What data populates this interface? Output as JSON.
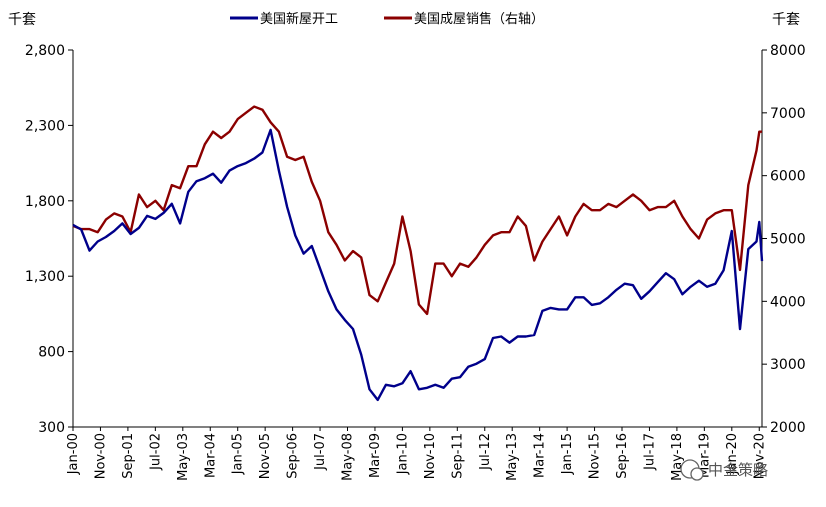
{
  "chart_data": {
    "type": "line",
    "title": "",
    "y_left_unit": "千套",
    "y_right_unit": "千套",
    "y_left_range": [
      300,
      2800
    ],
    "y_left_ticks": [
      "2,800",
      "2,300",
      "1,800",
      "1,300",
      "800",
      "300"
    ],
    "y_right_range": [
      2000,
      8000
    ],
    "y_right_ticks": [
      "8000",
      "7000",
      "6000",
      "5000",
      "4000",
      "3000",
      "2000"
    ],
    "x_tick_labels": [
      "Jan-00",
      "Nov-00",
      "Sep-01",
      "Jul-02",
      "May-03",
      "Mar-04",
      "Jan-05",
      "Nov-05",
      "Sep-06",
      "Jul-07",
      "May-08",
      "Mar-09",
      "Jan-10",
      "Nov-10",
      "Sep-11",
      "Jul-12",
      "May-13",
      "Mar-14",
      "Jan-15",
      "Nov-15",
      "Sep-16",
      "Jul-17",
      "May-18",
      "Mar-19",
      "Jan-20",
      "Nov-20"
    ],
    "x_range": [
      "2000-01",
      "2020-12"
    ],
    "grid": false,
    "legend_position": "top",
    "series": [
      {
        "name": "美国新屋开工",
        "axis": "left",
        "color": "#00008b",
        "points": [
          [
            "2000-01",
            1640
          ],
          [
            "2000-04",
            1610
          ],
          [
            "2000-07",
            1470
          ],
          [
            "2000-10",
            1530
          ],
          [
            "2001-01",
            1560
          ],
          [
            "2001-04",
            1600
          ],
          [
            "2001-07",
            1650
          ],
          [
            "2001-10",
            1580
          ],
          [
            "2002-01",
            1620
          ],
          [
            "2002-04",
            1700
          ],
          [
            "2002-07",
            1680
          ],
          [
            "2002-10",
            1720
          ],
          [
            "2003-01",
            1780
          ],
          [
            "2003-04",
            1650
          ],
          [
            "2003-07",
            1860
          ],
          [
            "2003-10",
            1930
          ],
          [
            "2004-01",
            1950
          ],
          [
            "2004-04",
            1980
          ],
          [
            "2004-07",
            1920
          ],
          [
            "2004-10",
            2000
          ],
          [
            "2005-01",
            2030
          ],
          [
            "2005-04",
            2050
          ],
          [
            "2005-07",
            2080
          ],
          [
            "2005-10",
            2120
          ],
          [
            "2006-01",
            2270
          ],
          [
            "2006-04",
            2000
          ],
          [
            "2006-07",
            1760
          ],
          [
            "2006-10",
            1570
          ],
          [
            "2007-01",
            1450
          ],
          [
            "2007-04",
            1500
          ],
          [
            "2007-07",
            1350
          ],
          [
            "2007-10",
            1200
          ],
          [
            "2008-01",
            1080
          ],
          [
            "2008-04",
            1010
          ],
          [
            "2008-07",
            950
          ],
          [
            "2008-10",
            780
          ],
          [
            "2009-01",
            550
          ],
          [
            "2009-04",
            480
          ],
          [
            "2009-07",
            580
          ],
          [
            "2009-10",
            570
          ],
          [
            "2010-01",
            590
          ],
          [
            "2010-04",
            670
          ],
          [
            "2010-07",
            550
          ],
          [
            "2010-10",
            560
          ],
          [
            "2011-01",
            580
          ],
          [
            "2011-04",
            560
          ],
          [
            "2011-07",
            620
          ],
          [
            "2011-10",
            630
          ],
          [
            "2012-01",
            700
          ],
          [
            "2012-04",
            720
          ],
          [
            "2012-07",
            750
          ],
          [
            "2012-10",
            890
          ],
          [
            "2013-01",
            900
          ],
          [
            "2013-04",
            860
          ],
          [
            "2013-07",
            900
          ],
          [
            "2013-10",
            900
          ],
          [
            "2014-01",
            910
          ],
          [
            "2014-04",
            1070
          ],
          [
            "2014-07",
            1090
          ],
          [
            "2014-10",
            1080
          ],
          [
            "2015-01",
            1080
          ],
          [
            "2015-04",
            1160
          ],
          [
            "2015-07",
            1160
          ],
          [
            "2015-10",
            1110
          ],
          [
            "2016-01",
            1120
          ],
          [
            "2016-04",
            1160
          ],
          [
            "2016-07",
            1210
          ],
          [
            "2016-10",
            1250
          ],
          [
            "2017-01",
            1240
          ],
          [
            "2017-04",
            1150
          ],
          [
            "2017-07",
            1200
          ],
          [
            "2017-10",
            1260
          ],
          [
            "2018-01",
            1320
          ],
          [
            "2018-04",
            1280
          ],
          [
            "2018-07",
            1180
          ],
          [
            "2018-10",
            1230
          ],
          [
            "2019-01",
            1270
          ],
          [
            "2019-04",
            1230
          ],
          [
            "2019-07",
            1250
          ],
          [
            "2019-10",
            1340
          ],
          [
            "2020-01",
            1600
          ],
          [
            "2020-04",
            950
          ],
          [
            "2020-07",
            1480
          ],
          [
            "2020-10",
            1530
          ],
          [
            "2020-11",
            1660
          ],
          [
            "2020-12",
            1400
          ]
        ]
      },
      {
        "name": "美国成屋销售（右轴）",
        "axis": "right",
        "color": "#8b0000",
        "points": [
          [
            "2000-01",
            5200
          ],
          [
            "2000-04",
            5150
          ],
          [
            "2000-07",
            5150
          ],
          [
            "2000-10",
            5100
          ],
          [
            "2001-01",
            5300
          ],
          [
            "2001-04",
            5400
          ],
          [
            "2001-07",
            5350
          ],
          [
            "2001-10",
            5100
          ],
          [
            "2002-01",
            5700
          ],
          [
            "2002-04",
            5500
          ],
          [
            "2002-07",
            5600
          ],
          [
            "2002-10",
            5450
          ],
          [
            "2003-01",
            5850
          ],
          [
            "2003-04",
            5800
          ],
          [
            "2003-07",
            6150
          ],
          [
            "2003-10",
            6150
          ],
          [
            "2004-01",
            6500
          ],
          [
            "2004-04",
            6700
          ],
          [
            "2004-07",
            6600
          ],
          [
            "2004-10",
            6700
          ],
          [
            "2005-01",
            6900
          ],
          [
            "2005-04",
            7000
          ],
          [
            "2005-07",
            7100
          ],
          [
            "2005-10",
            7050
          ],
          [
            "2006-01",
            6850
          ],
          [
            "2006-04",
            6700
          ],
          [
            "2006-07",
            6300
          ],
          [
            "2006-10",
            6250
          ],
          [
            "2007-01",
            6300
          ],
          [
            "2007-04",
            5900
          ],
          [
            "2007-07",
            5600
          ],
          [
            "2007-10",
            5100
          ],
          [
            "2008-01",
            4900
          ],
          [
            "2008-04",
            4650
          ],
          [
            "2008-07",
            4800
          ],
          [
            "2008-10",
            4700
          ],
          [
            "2009-01",
            4100
          ],
          [
            "2009-04",
            4000
          ],
          [
            "2009-07",
            4300
          ],
          [
            "2009-10",
            4600
          ],
          [
            "2010-01",
            5350
          ],
          [
            "2010-04",
            4800
          ],
          [
            "2010-07",
            3950
          ],
          [
            "2010-10",
            3800
          ],
          [
            "2011-01",
            4600
          ],
          [
            "2011-04",
            4600
          ],
          [
            "2011-07",
            4400
          ],
          [
            "2011-10",
            4600
          ],
          [
            "2012-01",
            4550
          ],
          [
            "2012-04",
            4700
          ],
          [
            "2012-07",
            4900
          ],
          [
            "2012-10",
            5050
          ],
          [
            "2013-01",
            5100
          ],
          [
            "2013-04",
            5100
          ],
          [
            "2013-07",
            5350
          ],
          [
            "2013-10",
            5200
          ],
          [
            "2014-01",
            4650
          ],
          [
            "2014-04",
            4950
          ],
          [
            "2014-07",
            5150
          ],
          [
            "2014-10",
            5350
          ],
          [
            "2015-01",
            5050
          ],
          [
            "2015-04",
            5350
          ],
          [
            "2015-07",
            5550
          ],
          [
            "2015-10",
            5450
          ],
          [
            "2016-01",
            5450
          ],
          [
            "2016-04",
            5550
          ],
          [
            "2016-07",
            5500
          ],
          [
            "2016-10",
            5600
          ],
          [
            "2017-01",
            5700
          ],
          [
            "2017-04",
            5600
          ],
          [
            "2017-07",
            5450
          ],
          [
            "2017-10",
            5500
          ],
          [
            "2018-01",
            5500
          ],
          [
            "2018-04",
            5600
          ],
          [
            "2018-07",
            5350
          ],
          [
            "2018-10",
            5150
          ],
          [
            "2019-01",
            5000
          ],
          [
            "2019-04",
            5300
          ],
          [
            "2019-07",
            5400
          ],
          [
            "2019-10",
            5450
          ],
          [
            "2020-01",
            5450
          ],
          [
            "2020-04",
            4500
          ],
          [
            "2020-07",
            5850
          ],
          [
            "2020-10",
            6400
          ],
          [
            "2020-11",
            6700
          ],
          [
            "2020-12",
            6700
          ]
        ]
      }
    ]
  },
  "watermark": {
    "text": "中金策略"
  }
}
